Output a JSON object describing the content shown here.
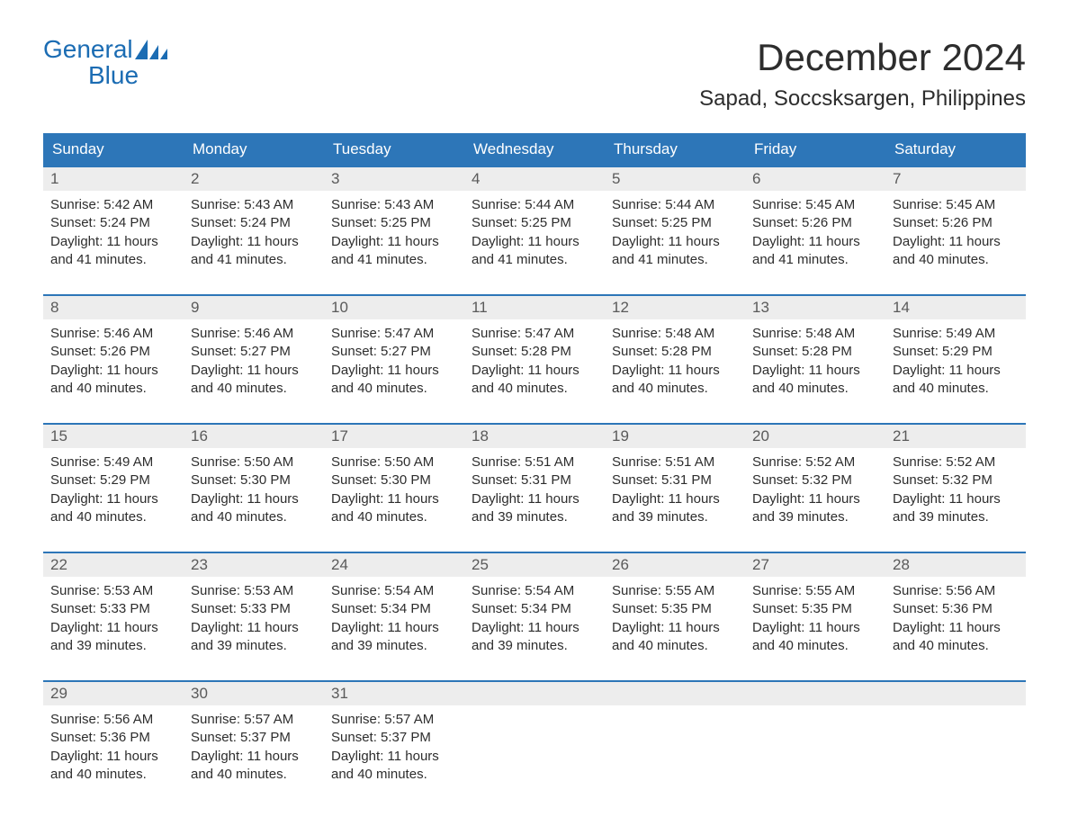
{
  "logo": {
    "word1": "General",
    "word2": "Blue",
    "icon_color": "#1b6cb3"
  },
  "title": "December 2024",
  "location": "Sapad, Soccsksargen, Philippines",
  "colors": {
    "header_bg": "#2d76b8",
    "header_text": "#ffffff",
    "daynum_bg": "#ededed",
    "daynum_text": "#5a5a5a",
    "body_text": "#2d2d2d",
    "week_border": "#2d76b8",
    "logo": "#1b6cb3",
    "page_bg": "#ffffff"
  },
  "typography": {
    "title_fontsize": 42,
    "location_fontsize": 24,
    "dayheader_fontsize": 17,
    "daynum_fontsize": 17,
    "content_fontsize": 15,
    "logo_fontsize": 28
  },
  "day_labels": [
    "Sunday",
    "Monday",
    "Tuesday",
    "Wednesday",
    "Thursday",
    "Friday",
    "Saturday"
  ],
  "weeks": [
    {
      "nums": [
        "1",
        "2",
        "3",
        "4",
        "5",
        "6",
        "7"
      ],
      "cells": [
        {
          "sunrise": "Sunrise: 5:42 AM",
          "sunset": "Sunset: 5:24 PM",
          "day1": "Daylight: 11 hours",
          "day2": "and 41 minutes."
        },
        {
          "sunrise": "Sunrise: 5:43 AM",
          "sunset": "Sunset: 5:24 PM",
          "day1": "Daylight: 11 hours",
          "day2": "and 41 minutes."
        },
        {
          "sunrise": "Sunrise: 5:43 AM",
          "sunset": "Sunset: 5:25 PM",
          "day1": "Daylight: 11 hours",
          "day2": "and 41 minutes."
        },
        {
          "sunrise": "Sunrise: 5:44 AM",
          "sunset": "Sunset: 5:25 PM",
          "day1": "Daylight: 11 hours",
          "day2": "and 41 minutes."
        },
        {
          "sunrise": "Sunrise: 5:44 AM",
          "sunset": "Sunset: 5:25 PM",
          "day1": "Daylight: 11 hours",
          "day2": "and 41 minutes."
        },
        {
          "sunrise": "Sunrise: 5:45 AM",
          "sunset": "Sunset: 5:26 PM",
          "day1": "Daylight: 11 hours",
          "day2": "and 41 minutes."
        },
        {
          "sunrise": "Sunrise: 5:45 AM",
          "sunset": "Sunset: 5:26 PM",
          "day1": "Daylight: 11 hours",
          "day2": "and 40 minutes."
        }
      ]
    },
    {
      "nums": [
        "8",
        "9",
        "10",
        "11",
        "12",
        "13",
        "14"
      ],
      "cells": [
        {
          "sunrise": "Sunrise: 5:46 AM",
          "sunset": "Sunset: 5:26 PM",
          "day1": "Daylight: 11 hours",
          "day2": "and 40 minutes."
        },
        {
          "sunrise": "Sunrise: 5:46 AM",
          "sunset": "Sunset: 5:27 PM",
          "day1": "Daylight: 11 hours",
          "day2": "and 40 minutes."
        },
        {
          "sunrise": "Sunrise: 5:47 AM",
          "sunset": "Sunset: 5:27 PM",
          "day1": "Daylight: 11 hours",
          "day2": "and 40 minutes."
        },
        {
          "sunrise": "Sunrise: 5:47 AM",
          "sunset": "Sunset: 5:28 PM",
          "day1": "Daylight: 11 hours",
          "day2": "and 40 minutes."
        },
        {
          "sunrise": "Sunrise: 5:48 AM",
          "sunset": "Sunset: 5:28 PM",
          "day1": "Daylight: 11 hours",
          "day2": "and 40 minutes."
        },
        {
          "sunrise": "Sunrise: 5:48 AM",
          "sunset": "Sunset: 5:28 PM",
          "day1": "Daylight: 11 hours",
          "day2": "and 40 minutes."
        },
        {
          "sunrise": "Sunrise: 5:49 AM",
          "sunset": "Sunset: 5:29 PM",
          "day1": "Daylight: 11 hours",
          "day2": "and 40 minutes."
        }
      ]
    },
    {
      "nums": [
        "15",
        "16",
        "17",
        "18",
        "19",
        "20",
        "21"
      ],
      "cells": [
        {
          "sunrise": "Sunrise: 5:49 AM",
          "sunset": "Sunset: 5:29 PM",
          "day1": "Daylight: 11 hours",
          "day2": "and 40 minutes."
        },
        {
          "sunrise": "Sunrise: 5:50 AM",
          "sunset": "Sunset: 5:30 PM",
          "day1": "Daylight: 11 hours",
          "day2": "and 40 minutes."
        },
        {
          "sunrise": "Sunrise: 5:50 AM",
          "sunset": "Sunset: 5:30 PM",
          "day1": "Daylight: 11 hours",
          "day2": "and 40 minutes."
        },
        {
          "sunrise": "Sunrise: 5:51 AM",
          "sunset": "Sunset: 5:31 PM",
          "day1": "Daylight: 11 hours",
          "day2": "and 39 minutes."
        },
        {
          "sunrise": "Sunrise: 5:51 AM",
          "sunset": "Sunset: 5:31 PM",
          "day1": "Daylight: 11 hours",
          "day2": "and 39 minutes."
        },
        {
          "sunrise": "Sunrise: 5:52 AM",
          "sunset": "Sunset: 5:32 PM",
          "day1": "Daylight: 11 hours",
          "day2": "and 39 minutes."
        },
        {
          "sunrise": "Sunrise: 5:52 AM",
          "sunset": "Sunset: 5:32 PM",
          "day1": "Daylight: 11 hours",
          "day2": "and 39 minutes."
        }
      ]
    },
    {
      "nums": [
        "22",
        "23",
        "24",
        "25",
        "26",
        "27",
        "28"
      ],
      "cells": [
        {
          "sunrise": "Sunrise: 5:53 AM",
          "sunset": "Sunset: 5:33 PM",
          "day1": "Daylight: 11 hours",
          "day2": "and 39 minutes."
        },
        {
          "sunrise": "Sunrise: 5:53 AM",
          "sunset": "Sunset: 5:33 PM",
          "day1": "Daylight: 11 hours",
          "day2": "and 39 minutes."
        },
        {
          "sunrise": "Sunrise: 5:54 AM",
          "sunset": "Sunset: 5:34 PM",
          "day1": "Daylight: 11 hours",
          "day2": "and 39 minutes."
        },
        {
          "sunrise": "Sunrise: 5:54 AM",
          "sunset": "Sunset: 5:34 PM",
          "day1": "Daylight: 11 hours",
          "day2": "and 39 minutes."
        },
        {
          "sunrise": "Sunrise: 5:55 AM",
          "sunset": "Sunset: 5:35 PM",
          "day1": "Daylight: 11 hours",
          "day2": "and 40 minutes."
        },
        {
          "sunrise": "Sunrise: 5:55 AM",
          "sunset": "Sunset: 5:35 PM",
          "day1": "Daylight: 11 hours",
          "day2": "and 40 minutes."
        },
        {
          "sunrise": "Sunrise: 5:56 AM",
          "sunset": "Sunset: 5:36 PM",
          "day1": "Daylight: 11 hours",
          "day2": "and 40 minutes."
        }
      ]
    },
    {
      "nums": [
        "29",
        "30",
        "31",
        "",
        "",
        "",
        ""
      ],
      "cells": [
        {
          "sunrise": "Sunrise: 5:56 AM",
          "sunset": "Sunset: 5:36 PM",
          "day1": "Daylight: 11 hours",
          "day2": "and 40 minutes."
        },
        {
          "sunrise": "Sunrise: 5:57 AM",
          "sunset": "Sunset: 5:37 PM",
          "day1": "Daylight: 11 hours",
          "day2": "and 40 minutes."
        },
        {
          "sunrise": "Sunrise: 5:57 AM",
          "sunset": "Sunset: 5:37 PM",
          "day1": "Daylight: 11 hours",
          "day2": "and 40 minutes."
        },
        {
          "sunrise": "",
          "sunset": "",
          "day1": "",
          "day2": ""
        },
        {
          "sunrise": "",
          "sunset": "",
          "day1": "",
          "day2": ""
        },
        {
          "sunrise": "",
          "sunset": "",
          "day1": "",
          "day2": ""
        },
        {
          "sunrise": "",
          "sunset": "",
          "day1": "",
          "day2": ""
        }
      ]
    }
  ]
}
